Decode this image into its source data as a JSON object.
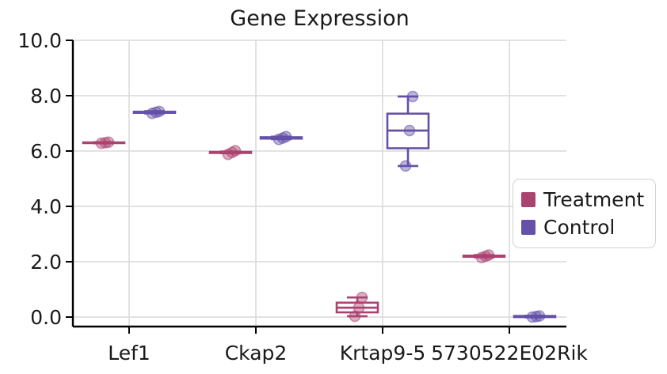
{
  "chart_data": {
    "type": "boxplot",
    "title": "Gene Expression",
    "xlabel": "",
    "ylabel": "",
    "categories": [
      "Lef1",
      "Ckap2",
      "Krtap9-5",
      "5730522E02Rik"
    ],
    "yticks": [
      0,
      2,
      4,
      6,
      8,
      10
    ],
    "ytick_labels": [
      "0.0",
      "2.0",
      "4.0",
      "6.0",
      "8.0",
      "10.0"
    ],
    "ylim": [
      -0.35,
      10.0
    ],
    "grid": true,
    "grid_color": "#d9d9d9",
    "axis_color": "#000000",
    "legend_position": "right",
    "groups": [
      {
        "name": "Treatment",
        "color": "#ab4371",
        "boxes": [
          {
            "category": "Lef1",
            "q1": 6.29,
            "median": 6.3,
            "q3": 6.31,
            "whisker_low": 6.28,
            "whisker_high": 6.32,
            "points": [
              6.28,
              6.3,
              6.32
            ]
          },
          {
            "category": "Ckap2",
            "q1": 5.93,
            "median": 5.95,
            "q3": 5.97,
            "whisker_low": 5.92,
            "whisker_high": 5.98,
            "points": [
              5.88,
              5.95,
              6.01
            ]
          },
          {
            "category": "Krtap9-5",
            "q1": 0.17,
            "median": 0.34,
            "q3": 0.52,
            "whisker_low": 0.03,
            "whisker_high": 0.71,
            "points": [
              0.03,
              0.34,
              0.71
            ]
          },
          {
            "category": "5730522E02Rik",
            "q1": 2.18,
            "median": 2.2,
            "q3": 2.22,
            "whisker_low": 2.16,
            "whisker_high": 2.24,
            "points": [
              2.15,
              2.2,
              2.24
            ]
          }
        ]
      },
      {
        "name": "Control",
        "color": "#6551a8",
        "boxes": [
          {
            "category": "Lef1",
            "q1": 7.38,
            "median": 7.4,
            "q3": 7.42,
            "whisker_low": 7.36,
            "whisker_high": 7.44,
            "points": [
              7.36,
              7.4,
              7.43
            ]
          },
          {
            "category": "Ckap2",
            "q1": 6.45,
            "median": 6.48,
            "q3": 6.5,
            "whisker_low": 6.43,
            "whisker_high": 6.52,
            "points": [
              6.42,
              6.47,
              6.52
            ]
          },
          {
            "category": "Krtap9-5",
            "q1": 6.1,
            "median": 6.74,
            "q3": 7.35,
            "whisker_low": 5.46,
            "whisker_high": 7.97,
            "points": [
              5.46,
              6.74,
              7.97
            ]
          },
          {
            "category": "5730522E02Rik",
            "q1": 0.0,
            "median": 0.02,
            "q3": 0.04,
            "whisker_low": -0.01,
            "whisker_high": 0.05,
            "points": [
              0.0,
              0.02,
              0.04
            ]
          }
        ]
      }
    ]
  }
}
